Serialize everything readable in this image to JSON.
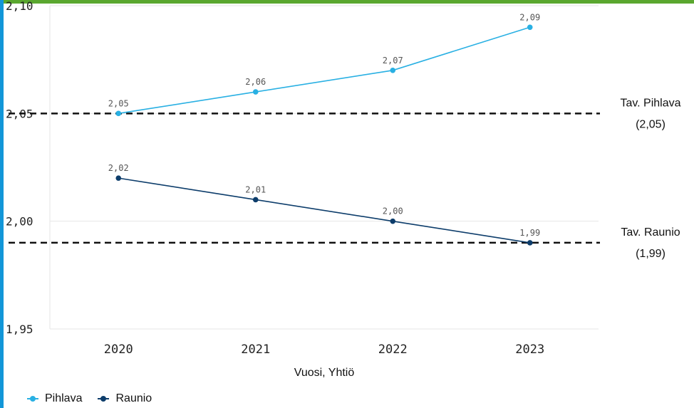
{
  "colors": {
    "top_bar": "#5aa72f",
    "left_bar": "#1296d8",
    "pihlava": "#29b0e3",
    "raunio": "#0d3d6b",
    "reference_line": "#111111",
    "grid": "#e6e6e6"
  },
  "chart_data": {
    "type": "line",
    "categories": [
      "2020",
      "2021",
      "2022",
      "2023"
    ],
    "series": [
      {
        "name": "Pihlava",
        "values": [
          2.05,
          2.06,
          2.07,
          2.09
        ],
        "labels": [
          "2,05",
          "2,06",
          "2,07",
          "2,09"
        ]
      },
      {
        "name": "Raunio",
        "values": [
          2.02,
          2.01,
          2.0,
          1.99
        ],
        "labels": [
          "2,02",
          "2,01",
          "2,00",
          "1,99"
        ]
      }
    ],
    "ylim": [
      1.95,
      2.1
    ],
    "yticks": [
      {
        "value": 1.95,
        "label": "1,95"
      },
      {
        "value": 2.0,
        "label": "2,00"
      },
      {
        "value": 2.05,
        "label": "2,05"
      },
      {
        "value": 2.1,
        "label": "2,10"
      }
    ],
    "reference_lines": [
      {
        "value": 2.05,
        "label_line1": "Tav. Pihlava",
        "label_line2": "(2,05)"
      },
      {
        "value": 1.99,
        "label_line1": "Tav. Raunio",
        "label_line2": "(1,99)"
      }
    ],
    "xlabel": "Vuosi, Yhtiö",
    "ylabel": "",
    "grid": true,
    "legend_position": "bottom-left"
  },
  "legend": {
    "items": [
      {
        "label": "Pihlava",
        "color": "#29b0e3"
      },
      {
        "label": "Raunio",
        "color": "#0d3d6b"
      }
    ]
  }
}
